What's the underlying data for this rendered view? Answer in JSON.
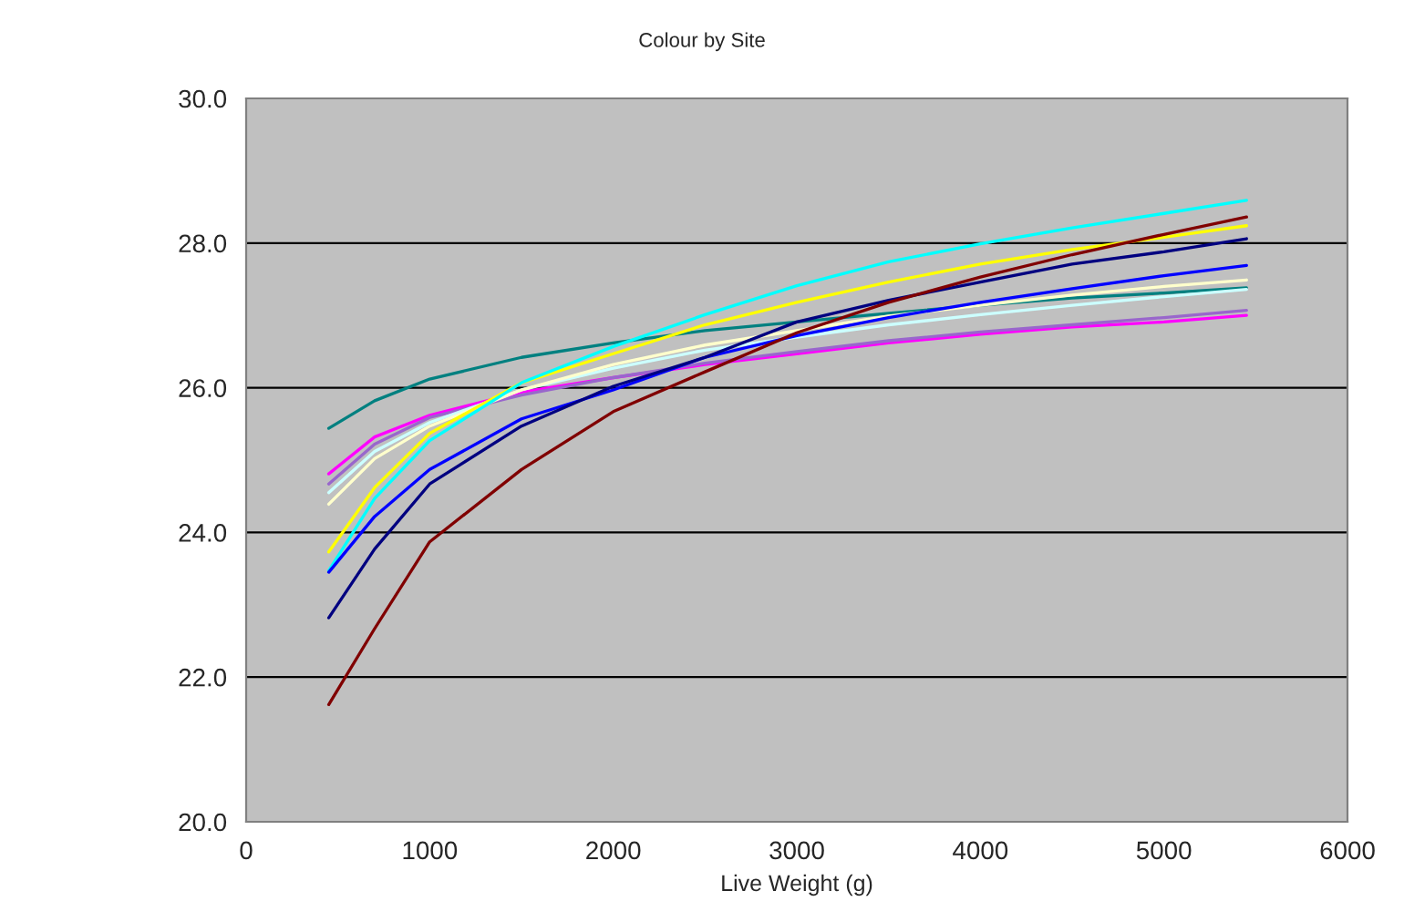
{
  "chart_data": {
    "type": "line",
    "title": "Colour by Site",
    "xlabel": "Live Weight (g)",
    "x": [
      450,
      700,
      1000,
      1500,
      2000,
      2500,
      3000,
      3500,
      4000,
      4500,
      5000,
      5450
    ],
    "series": [
      {
        "color": "#008080",
        "values": [
          25.44,
          25.82,
          26.12,
          26.42,
          26.62,
          26.79,
          26.91,
          27.03,
          27.14,
          27.24,
          27.31,
          27.38
        ]
      },
      {
        "color": "#ff00ff",
        "values": [
          24.81,
          25.32,
          25.62,
          25.94,
          26.14,
          26.32,
          26.47,
          26.62,
          26.74,
          26.84,
          26.91,
          27.0
        ]
      },
      {
        "color": "#9966cc",
        "values": [
          24.67,
          25.22,
          25.59,
          25.9,
          26.14,
          26.34,
          26.5,
          26.65,
          26.77,
          26.87,
          26.97,
          27.07
        ]
      },
      {
        "color": "#ccffff",
        "values": [
          24.55,
          25.12,
          25.52,
          25.97,
          26.27,
          26.52,
          26.7,
          26.87,
          27.01,
          27.14,
          27.26,
          27.36
        ]
      },
      {
        "color": "#ffffcc",
        "values": [
          24.39,
          25.02,
          25.47,
          25.97,
          26.32,
          26.59,
          26.79,
          26.99,
          27.14,
          27.28,
          27.4,
          27.49
        ]
      },
      {
        "color": "#ffff00",
        "values": [
          23.73,
          24.62,
          25.37,
          26.07,
          26.47,
          26.87,
          27.18,
          27.46,
          27.71,
          27.91,
          28.08,
          28.24
        ]
      },
      {
        "color": "#00ffff",
        "values": [
          23.47,
          24.47,
          25.27,
          26.07,
          26.57,
          27.01,
          27.41,
          27.74,
          27.99,
          28.21,
          28.41,
          28.59
        ]
      },
      {
        "color": "#0000ff",
        "values": [
          23.45,
          24.22,
          24.87,
          25.57,
          25.97,
          26.42,
          26.72,
          26.97,
          27.18,
          27.37,
          27.55,
          27.69
        ]
      },
      {
        "color": "#000080",
        "values": [
          22.82,
          23.77,
          24.67,
          25.47,
          26.02,
          26.42,
          26.91,
          27.21,
          27.46,
          27.71,
          27.88,
          28.06
        ]
      },
      {
        "color": "#800000",
        "values": [
          21.62,
          22.67,
          23.87,
          24.87,
          25.67,
          26.22,
          26.76,
          27.18,
          27.53,
          27.84,
          28.12,
          28.36
        ]
      }
    ],
    "xlim": [
      0,
      6000
    ],
    "xticks": [
      0,
      1000,
      2000,
      3000,
      4000,
      5000,
      6000
    ],
    "ylim": [
      20,
      30
    ],
    "yticks": [
      {
        "value": 20,
        "label": "20.0"
      },
      {
        "value": 22,
        "label": "22.0"
      },
      {
        "value": 24,
        "label": "24.0"
      },
      {
        "value": 26,
        "label": "26.0"
      },
      {
        "value": 28,
        "label": "28.0"
      },
      {
        "value": 30,
        "label": "30.0"
      }
    ],
    "grid": "y",
    "legend": false,
    "marker": "none",
    "line_style": "solid"
  }
}
